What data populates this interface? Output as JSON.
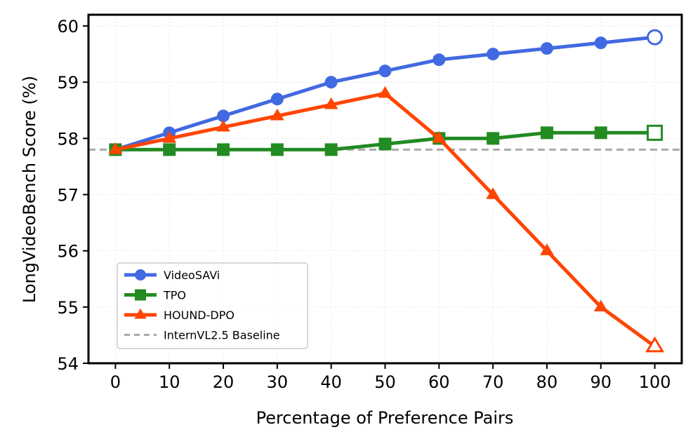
{
  "chart_data": {
    "type": "line",
    "xlabel": "Percentage of Preference Pairs",
    "ylabel": "LongVideoBench Score (%)",
    "xlim": [
      -5,
      105
    ],
    "ylim": [
      54,
      60.2
    ],
    "x": [
      0,
      10,
      20,
      30,
      40,
      50,
      60,
      70,
      80,
      90,
      100
    ],
    "x_ticks": [
      0,
      10,
      20,
      30,
      40,
      50,
      60,
      70,
      80,
      90,
      100
    ],
    "y_ticks": [
      54,
      55,
      56,
      57,
      58,
      59,
      60
    ],
    "grid": true,
    "legend_position": "lower-left",
    "series": [
      {
        "name": "VideoSAVi",
        "color": "#4169e1",
        "marker": "circle",
        "values": [
          57.8,
          58.1,
          58.4,
          58.7,
          59.0,
          59.2,
          59.4,
          59.5,
          59.6,
          59.7,
          59.8
        ]
      },
      {
        "name": "TPO",
        "color": "#228b22",
        "marker": "square",
        "values": [
          57.8,
          57.8,
          57.8,
          57.8,
          57.8,
          57.9,
          58.0,
          58.0,
          58.1,
          58.1,
          58.1
        ]
      },
      {
        "name": "HOUND-DPO",
        "color": "#ff4500",
        "marker": "triangle",
        "values": [
          57.8,
          58.0,
          58.2,
          58.4,
          58.6,
          58.8,
          58.0,
          57.0,
          56.0,
          55.0,
          54.3
        ]
      }
    ],
    "baseline": {
      "name": "InternVL2.5 Baseline",
      "value": 57.8,
      "color": "#aaaaaa"
    }
  }
}
